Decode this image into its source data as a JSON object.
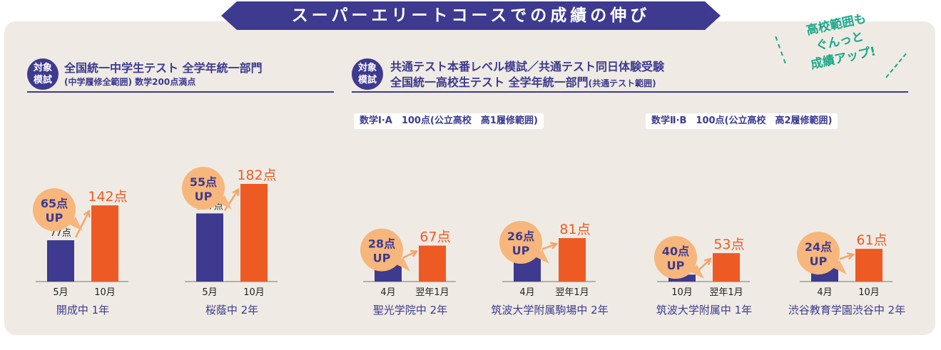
{
  "banner": {
    "title": "スーパーエリートコースでの成績の伸び"
  },
  "callout": {
    "line1": "高校範囲も",
    "line2": "ぐんっと",
    "line3": "成績アップ!"
  },
  "colors": {
    "navy": "#3d3a8f",
    "orange": "#ee5a24",
    "bubble": "#f7b67c",
    "arrow": "#f4a46a",
    "panel": "#efebe4",
    "green": "#1aa88a"
  },
  "badge_label": {
    "line1": "対象",
    "line2": "模試"
  },
  "section_left": {
    "title": "全国統一中学生テスト 全学年統一部門",
    "subtitle_paren": "(中学履修全範囲)",
    "subtitle_rest": "数学200点満点"
  },
  "section_right": {
    "title1": "共通テスト本番レベル模試／共通テスト同日体験受験",
    "title2_main": "全国統一高校生テスト 全学年統一部門",
    "title2_paren": "(共通テスト範囲)",
    "sub_a": "数学Ⅰ·A　100点(公立高校　高1履修範囲)",
    "sub_b": "数学Ⅱ·B　100点(公立高校　高2履修範囲)"
  },
  "unit": "点",
  "up_label": "UP",
  "chart_data": [
    {
      "type": "bar",
      "categories": [
        "5月",
        "10月"
      ],
      "values": [
        77,
        142
      ],
      "up": "65点",
      "caption": "開成中 1年"
    },
    {
      "type": "bar",
      "categories": [
        "5月",
        "10月"
      ],
      "values": [
        127,
        182
      ],
      "up": "55点",
      "caption": "桜蔭中 2年"
    },
    {
      "type": "bar",
      "categories": [
        "4月",
        "翌年1月"
      ],
      "values": [
        39,
        67
      ],
      "up": "28点",
      "caption": "聖光学院中 2年"
    },
    {
      "type": "bar",
      "categories": [
        "4月",
        "翌年1月"
      ],
      "values": [
        55,
        81
      ],
      "up": "26点",
      "caption": "筑波大学附属駒場中 2年"
    },
    {
      "type": "bar",
      "categories": [
        "10月",
        "翌年1月"
      ],
      "values": [
        13,
        53
      ],
      "up": "40点",
      "caption": "筑波大学附属中 1年"
    },
    {
      "type": "bar",
      "categories": [
        "4月",
        "10月"
      ],
      "values": [
        37,
        61
      ],
      "up": "24点",
      "caption": "渋谷教育学園渋谷中 2年"
    }
  ]
}
